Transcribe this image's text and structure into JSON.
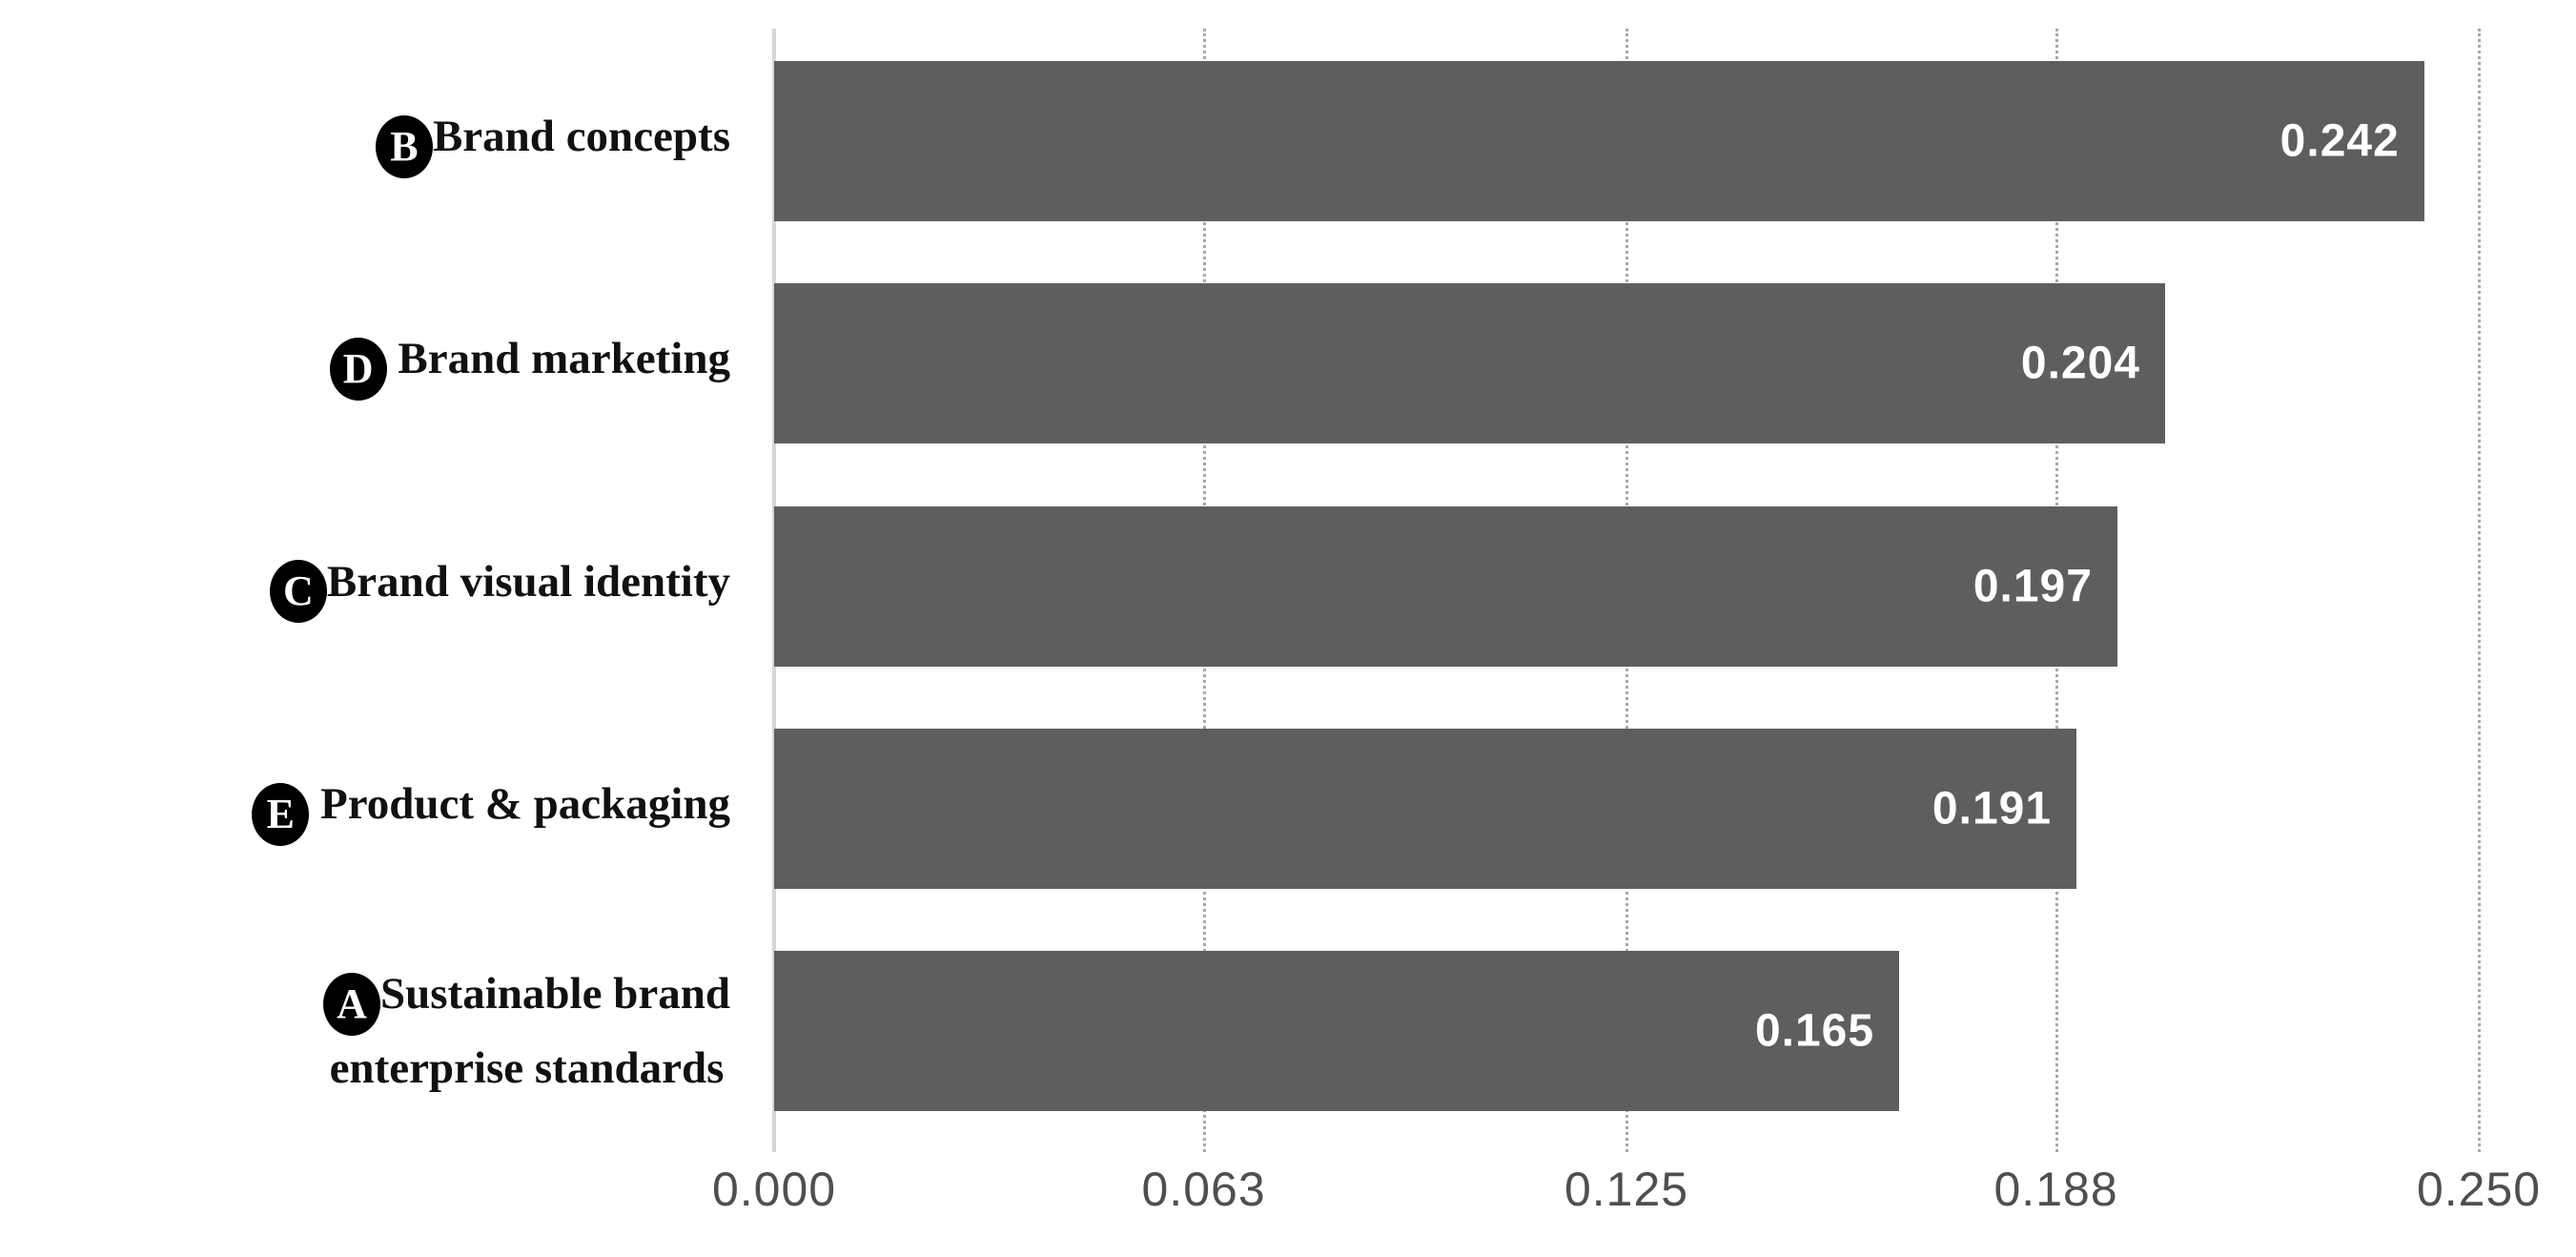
{
  "chart_data": {
    "type": "bar",
    "orientation": "horizontal",
    "title": "",
    "xlabel": "",
    "ylabel": "",
    "categories": [
      [
        "Brand concepts"
      ],
      [
        " Brand marketing"
      ],
      [
        "Brand visual identity"
      ],
      [
        " Product & packaging"
      ],
      [
        "Sustainable brand",
        "enterprise standards"
      ]
    ],
    "category_markers": [
      "B",
      "D",
      "C",
      "E",
      "A"
    ],
    "values": [
      0.242,
      0.204,
      0.197,
      0.191,
      0.165
    ],
    "value_labels": [
      "0.242",
      "0.204",
      "0.197",
      "0.191",
      "0.165"
    ],
    "xlim": [
      0,
      0.25
    ],
    "x_tick_values": [
      0,
      0.063,
      0.125,
      0.188,
      0.25
    ],
    "x_tick_labels": [
      "0.000",
      "0.063",
      "0.125",
      "0.188",
      "0.250"
    ],
    "grid": "dotted vertical gridlines, zero axis solid",
    "legend": "none",
    "colors": {
      "bar_fill": "#5e5e5e",
      "bar_value_text": "#ffffff",
      "gridline": "#a8a8a8",
      "zero_axis_line": "#d6d6d6",
      "tick_label_text": "#4f4f4f",
      "category_label_text": "#111111",
      "marker_background": "#000000",
      "marker_letter": "#ffffff",
      "background": "#ffffff"
    }
  }
}
